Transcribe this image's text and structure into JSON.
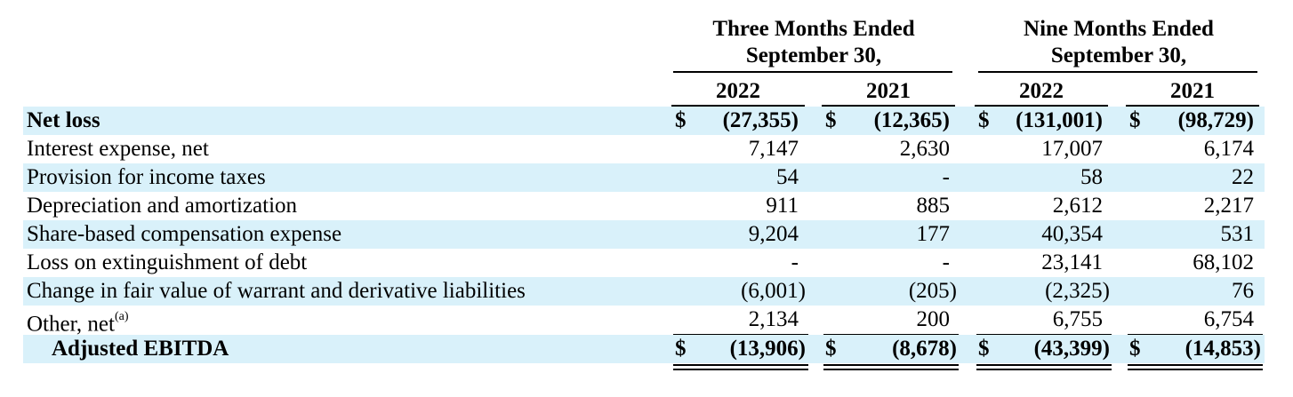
{
  "header": {
    "three_months": [
      "Three Months Ended",
      "September 30,"
    ],
    "nine_months": [
      "Nine Months Ended",
      "September 30,"
    ],
    "years": [
      "2022",
      "2021",
      "2022",
      "2021"
    ]
  },
  "currency_symbol": "$",
  "rows": [
    {
      "label": "Net loss",
      "values": [
        "(27,355)",
        "(12,365)",
        "(131,001)",
        "(98,729)"
      ]
    },
    {
      "label": "Interest expense, net",
      "values": [
        "7,147",
        "2,630",
        "17,007",
        "6,174"
      ]
    },
    {
      "label": "Provision for income taxes",
      "values": [
        "54",
        "-",
        "58",
        "22"
      ]
    },
    {
      "label": "Depreciation and amortization",
      "values": [
        "911",
        "885",
        "2,612",
        "2,217"
      ]
    },
    {
      "label": "Share-based compensation expense",
      "values": [
        "9,204",
        "177",
        "40,354",
        "531"
      ]
    },
    {
      "label": "Loss on extinguishment of debt",
      "values": [
        "-",
        "-",
        "23,141",
        "68,102"
      ]
    },
    {
      "label": "Change in fair value of warrant and derivative liabilities",
      "values": [
        "(6,001)",
        "(205)",
        "(2,325)",
        "76"
      ]
    },
    {
      "label": "Other, net",
      "label_sup": "(a)",
      "values": [
        "2,134",
        "200",
        "6,755",
        "6,754"
      ]
    },
    {
      "label": "Adjusted EBITDA",
      "values": [
        "(13,906)",
        "(8,678)",
        "(43,399)",
        "(14,853)"
      ]
    }
  ],
  "colors": {
    "row_shade": "#d9f1fa"
  }
}
